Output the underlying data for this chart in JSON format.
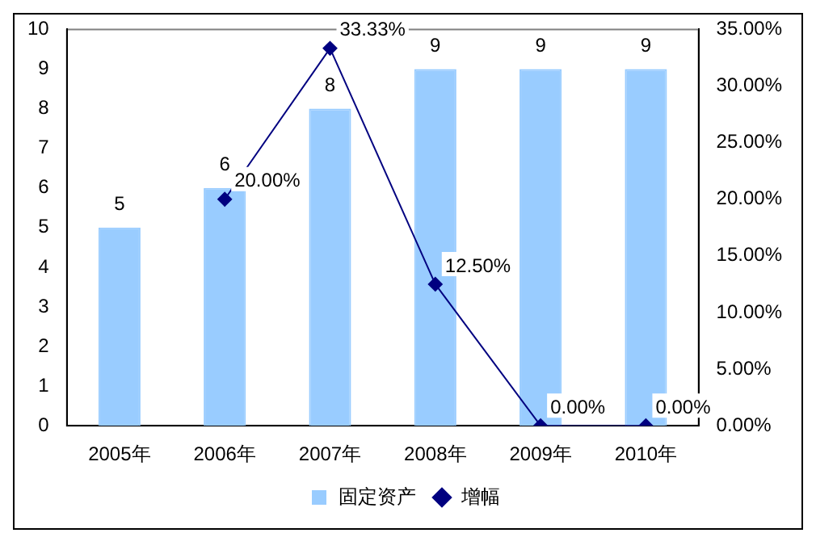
{
  "chart_data": {
    "type": "bar",
    "categories": [
      "2005年",
      "2006年",
      "2007年",
      "2008年",
      "2009年",
      "2010年"
    ],
    "series": [
      {
        "name": "固定资产",
        "color": "#99ccff",
        "values": [
          5,
          6,
          8,
          9,
          9,
          9
        ],
        "value_labels": [
          "5",
          "6",
          "8",
          "9",
          "9",
          "9"
        ]
      },
      {
        "name": "增幅",
        "type": "line",
        "axis": "y2",
        "color": "#000080",
        "values": [
          null,
          20,
          33.33,
          12.5,
          0,
          0
        ],
        "value_labels": [
          null,
          "20.00%",
          "33.33%",
          "12.50%",
          "0.00%",
          "0.00%"
        ]
      }
    ],
    "ylim": [
      0,
      10
    ],
    "yticks": [
      0,
      1,
      2,
      3,
      4,
      5,
      6,
      7,
      8,
      9,
      10
    ],
    "y2lim": [
      0,
      35
    ],
    "y2ticks": [
      {
        "value": 0,
        "label": "0.00%"
      },
      {
        "value": 5,
        "label": "5.00%"
      },
      {
        "value": 10,
        "label": "10.00%"
      },
      {
        "value": 15,
        "label": "15.00%"
      },
      {
        "value": 20,
        "label": "20.00%"
      },
      {
        "value": 25,
        "label": "25.00%"
      },
      {
        "value": 30,
        "label": "30.00%"
      },
      {
        "value": 35,
        "label": "35.00%"
      }
    ],
    "grid": false,
    "legend": "bottom",
    "marker": "diamond",
    "line_style": "solid"
  }
}
